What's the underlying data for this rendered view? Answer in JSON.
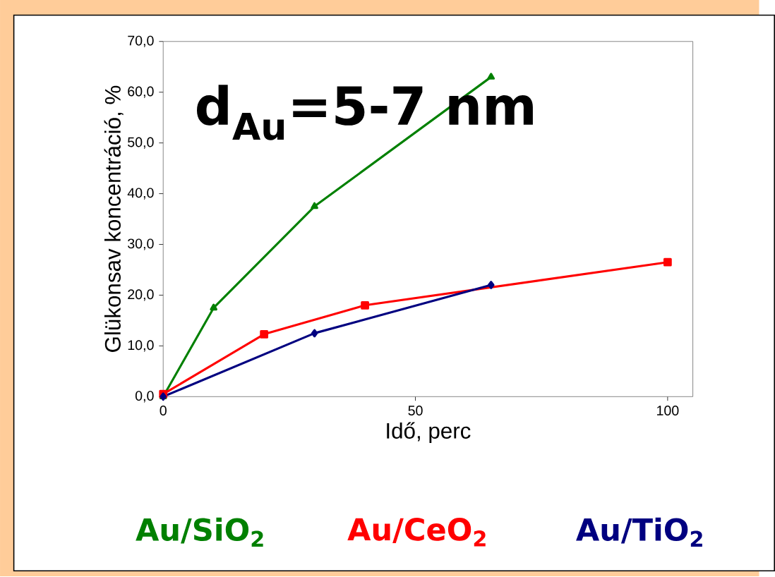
{
  "chart_data": {
    "type": "line",
    "xlabel": "Idő, perc",
    "ylabel": "Glükonsav koncentráció, %",
    "annotations": [
      "d$_{Au}$=5-7 nm"
    ],
    "xlim": [
      0,
      105
    ],
    "xticks": [
      0,
      50,
      100
    ],
    "ylim": [
      0,
      70
    ],
    "yticks": [
      {
        "value": 0,
        "label": "0,0"
      },
      {
        "value": 10,
        "label": "10,0"
      },
      {
        "value": 20,
        "label": "20,0"
      },
      {
        "value": 30,
        "label": "30,0"
      },
      {
        "value": 40,
        "label": "40,0"
      },
      {
        "value": 50,
        "label": "50,0"
      },
      {
        "value": 60,
        "label": "60,0"
      },
      {
        "value": 70,
        "label": "70,0"
      }
    ],
    "grid": false,
    "legend": "bottom",
    "line_style": "solid",
    "series": [
      {
        "name": "Au/SiO$_{2}$",
        "color": "#008000",
        "marker": "triangle",
        "x": [
          0,
          10,
          30,
          65
        ],
        "values": [
          0,
          17.5,
          37.5,
          63
        ]
      },
      {
        "name": "Au/CeO$_{2}$",
        "color": "#ff0000",
        "marker": "square",
        "x": [
          0,
          20,
          40,
          100
        ],
        "values": [
          0.5,
          12.3,
          18,
          26.5
        ]
      },
      {
        "name": "Au/TiO$_{2}$",
        "color": "#000080",
        "marker": "diamond",
        "x": [
          0,
          30,
          65
        ],
        "values": [
          0,
          12.5,
          22
        ]
      }
    ]
  }
}
